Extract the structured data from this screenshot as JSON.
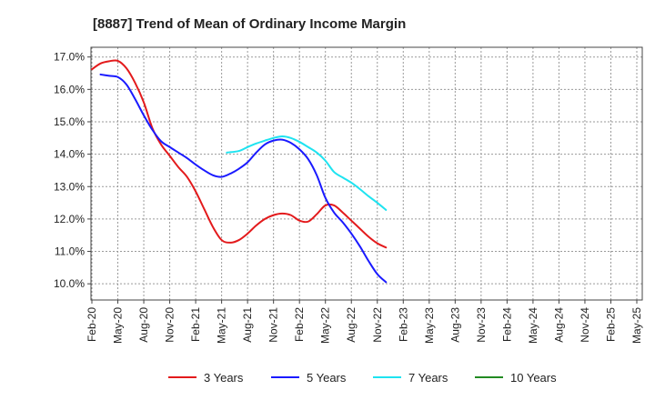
{
  "chart_data": {
    "type": "line",
    "title": "[8887]  Trend of Mean of Ordinary Income Margin",
    "xlabel": "",
    "ylabel": "",
    "ylim": [
      9.5,
      17.3
    ],
    "y_ticks": [
      "10.0%",
      "11.0%",
      "12.0%",
      "13.0%",
      "14.0%",
      "15.0%",
      "16.0%",
      "17.0%"
    ],
    "y_tick_values": [
      10,
      11,
      12,
      13,
      14,
      15,
      16,
      17
    ],
    "x_ticks": [
      "Feb-20",
      "May-20",
      "Aug-20",
      "Nov-20",
      "Feb-21",
      "May-21",
      "Aug-21",
      "Nov-21",
      "Feb-22",
      "May-22",
      "Aug-22",
      "Nov-22",
      "Feb-23",
      "May-23",
      "Aug-23",
      "Nov-23",
      "Feb-24",
      "May-24",
      "Aug-24",
      "Nov-24",
      "Feb-25",
      "May-25"
    ],
    "grid": true,
    "legend_position": "bottom",
    "series": [
      {
        "name": "3 Years",
        "color": "#e31a1c",
        "values": [
          [
            0,
            16.62
          ],
          [
            1,
            16.8
          ],
          [
            2,
            16.87
          ],
          [
            3,
            16.88
          ],
          [
            4,
            16.65
          ],
          [
            5,
            16.2
          ],
          [
            6,
            15.6
          ],
          [
            7,
            14.8
          ],
          [
            8,
            14.3
          ],
          [
            9,
            13.95
          ],
          [
            10,
            13.6
          ],
          [
            11,
            13.3
          ],
          [
            12,
            12.85
          ],
          [
            13,
            12.3
          ],
          [
            14,
            11.75
          ],
          [
            15,
            11.35
          ],
          [
            16,
            11.27
          ],
          [
            17,
            11.35
          ],
          [
            18,
            11.55
          ],
          [
            19,
            11.8
          ],
          [
            20,
            12.0
          ],
          [
            21,
            12.12
          ],
          [
            22,
            12.17
          ],
          [
            23,
            12.12
          ],
          [
            24,
            11.95
          ],
          [
            25,
            11.92
          ],
          [
            26,
            12.15
          ],
          [
            27,
            12.42
          ],
          [
            28,
            12.42
          ],
          [
            29,
            12.2
          ],
          [
            30,
            11.95
          ],
          [
            31,
            11.7
          ],
          [
            32,
            11.45
          ],
          [
            33,
            11.25
          ],
          [
            34,
            11.12
          ]
        ]
      },
      {
        "name": "5 Years",
        "color": "#1a1aff",
        "values": [
          [
            1,
            16.46
          ],
          [
            2,
            16.42
          ],
          [
            3,
            16.38
          ],
          [
            4,
            16.15
          ],
          [
            5,
            15.7
          ],
          [
            6,
            15.2
          ],
          [
            7,
            14.75
          ],
          [
            8,
            14.4
          ],
          [
            9,
            14.22
          ],
          [
            10,
            14.05
          ],
          [
            11,
            13.88
          ],
          [
            12,
            13.68
          ],
          [
            13,
            13.5
          ],
          [
            14,
            13.35
          ],
          [
            15,
            13.3
          ],
          [
            16,
            13.4
          ],
          [
            17,
            13.55
          ],
          [
            18,
            13.75
          ],
          [
            19,
            14.05
          ],
          [
            20,
            14.3
          ],
          [
            21,
            14.42
          ],
          [
            22,
            14.45
          ],
          [
            23,
            14.35
          ],
          [
            24,
            14.15
          ],
          [
            25,
            13.85
          ],
          [
            26,
            13.35
          ],
          [
            27,
            12.65
          ],
          [
            28,
            12.2
          ],
          [
            29,
            11.9
          ],
          [
            30,
            11.55
          ],
          [
            31,
            11.15
          ],
          [
            32,
            10.7
          ],
          [
            33,
            10.3
          ],
          [
            34,
            10.05
          ]
        ]
      },
      {
        "name": "7 Years",
        "color": "#1ee3f0",
        "values": [
          [
            15.6,
            14.05
          ],
          [
            17,
            14.1
          ],
          [
            18,
            14.22
          ],
          [
            19,
            14.33
          ],
          [
            20,
            14.42
          ],
          [
            21,
            14.5
          ],
          [
            22,
            14.55
          ],
          [
            23,
            14.5
          ],
          [
            24,
            14.38
          ],
          [
            25,
            14.22
          ],
          [
            26,
            14.05
          ],
          [
            27,
            13.8
          ],
          [
            28,
            13.45
          ],
          [
            29,
            13.28
          ],
          [
            30,
            13.12
          ],
          [
            31,
            12.92
          ],
          [
            32,
            12.7
          ],
          [
            33,
            12.5
          ],
          [
            34,
            12.28
          ]
        ]
      },
      {
        "name": "10 Years",
        "color": "#228b22",
        "values": []
      }
    ]
  }
}
